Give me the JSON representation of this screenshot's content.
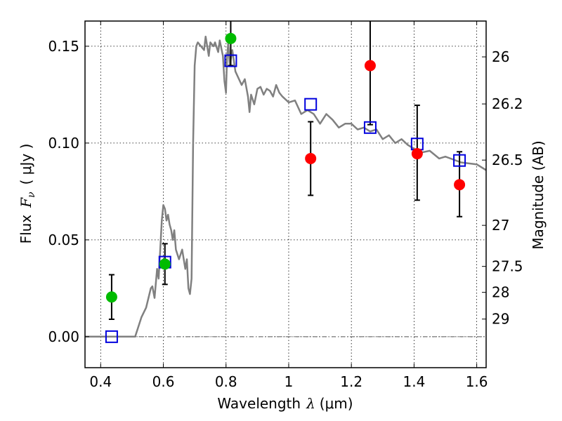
{
  "chart_data": {
    "type": "scatter",
    "xlabel": "Wavelength",
    "xlabel_symbol": "λ",
    "xlabel_unit": "(μm)",
    "ylabel": "Flux",
    "ylabel_symbol": "F",
    "ylabel_subscript": "ν",
    "ylabel_unit": "( μJy )",
    "y2label": "Magnitude (AB)",
    "xlim": [
      0.35,
      1.63
    ],
    "ylim": [
      -0.016,
      0.163
    ],
    "x_ticks": [
      0.4,
      0.6,
      0.8,
      1.0,
      1.2,
      1.4,
      1.6
    ],
    "x_tick_labels": [
      "0.4",
      "0.6",
      "0.8",
      "1",
      "1.2",
      "1.4",
      "1.6"
    ],
    "y_ticks": [
      0.0,
      0.05,
      0.1,
      0.15
    ],
    "y_tick_labels": [
      "0.00",
      "0.05",
      "0.10",
      "0.15"
    ],
    "mag_ticks": [
      {
        "label": "26",
        "flux": 0.1445
      },
      {
        "label": "26.2",
        "flux": 0.1202
      },
      {
        "label": "26.5",
        "flux": 0.0912
      },
      {
        "label": "27",
        "flux": 0.0575
      },
      {
        "label": "27.5",
        "flux": 0.0363
      },
      {
        "label": "28",
        "flux": 0.0229
      },
      {
        "label": "29",
        "flux": 0.0091
      }
    ],
    "grid": true,
    "series": [
      {
        "name": "model-sed",
        "kind": "line",
        "color": "#808080",
        "x": [
          0.35,
          0.51,
          0.53,
          0.545,
          0.56,
          0.565,
          0.572,
          0.58,
          0.585,
          0.59,
          0.595,
          0.6,
          0.605,
          0.61,
          0.615,
          0.62,
          0.625,
          0.63,
          0.635,
          0.64,
          0.65,
          0.66,
          0.67,
          0.675,
          0.68,
          0.685,
          0.69,
          0.695,
          0.7,
          0.705,
          0.71,
          0.72,
          0.73,
          0.735,
          0.745,
          0.75,
          0.76,
          0.765,
          0.775,
          0.78,
          0.79,
          0.795,
          0.8,
          0.803,
          0.807,
          0.812,
          0.82,
          0.83,
          0.85,
          0.86,
          0.87,
          0.875,
          0.88,
          0.89,
          0.9,
          0.91,
          0.92,
          0.93,
          0.94,
          0.95,
          0.96,
          0.97,
          0.98,
          1.0,
          1.02,
          1.04,
          1.06,
          1.08,
          1.1,
          1.12,
          1.14,
          1.16,
          1.18,
          1.2,
          1.22,
          1.24,
          1.26,
          1.28,
          1.3,
          1.32,
          1.34,
          1.36,
          1.38,
          1.4,
          1.42,
          1.45,
          1.48,
          1.5,
          1.55,
          1.6,
          1.63
        ],
        "y": [
          0.0,
          0.0,
          0.01,
          0.015,
          0.025,
          0.026,
          0.02,
          0.035,
          0.03,
          0.045,
          0.06,
          0.068,
          0.066,
          0.06,
          0.063,
          0.058,
          0.055,
          0.05,
          0.055,
          0.045,
          0.04,
          0.045,
          0.035,
          0.04,
          0.025,
          0.022,
          0.03,
          0.1,
          0.14,
          0.15,
          0.152,
          0.15,
          0.148,
          0.155,
          0.145,
          0.152,
          0.15,
          0.152,
          0.147,
          0.153,
          0.145,
          0.132,
          0.126,
          0.143,
          0.152,
          0.14,
          0.148,
          0.137,
          0.13,
          0.133,
          0.124,
          0.116,
          0.125,
          0.12,
          0.128,
          0.129,
          0.125,
          0.128,
          0.127,
          0.124,
          0.13,
          0.126,
          0.124,
          0.121,
          0.122,
          0.115,
          0.117,
          0.115,
          0.11,
          0.115,
          0.112,
          0.108,
          0.11,
          0.11,
          0.107,
          0.108,
          0.106,
          0.107,
          0.102,
          0.104,
          0.1,
          0.102,
          0.099,
          0.097,
          0.095,
          0.096,
          0.092,
          0.093,
          0.09,
          0.089,
          0.086
        ]
      },
      {
        "name": "observed-green",
        "kind": "points",
        "color": "#00bb00",
        "points": [
          {
            "x": 0.435,
            "y": 0.0205,
            "err_low": 0.009,
            "err_high": 0.032
          },
          {
            "x": 0.605,
            "y": 0.0375,
            "err_low": 0.027,
            "err_high": 0.048
          },
          {
            "x": 0.815,
            "y": 0.154,
            "err_low": 0.14,
            "err_high": 0.163
          }
        ]
      },
      {
        "name": "observed-red",
        "kind": "points",
        "color": "#ff0000",
        "points": [
          {
            "x": 1.07,
            "y": 0.092,
            "err_low": 0.073,
            "err_high": 0.111
          },
          {
            "x": 1.26,
            "y": 0.14,
            "err_low": 0.1095,
            "err_high": 0.163
          },
          {
            "x": 1.41,
            "y": 0.0945,
            "err_low": 0.0705,
            "err_high": 0.1195
          },
          {
            "x": 1.545,
            "y": 0.0785,
            "err_low": 0.062,
            "err_high": 0.0955
          }
        ]
      },
      {
        "name": "model-photometry",
        "kind": "squares",
        "color": "#0000dd",
        "points": [
          {
            "x": 0.435,
            "y": 0.0
          },
          {
            "x": 0.605,
            "y": 0.0385
          },
          {
            "x": 0.815,
            "y": 0.1425
          },
          {
            "x": 1.07,
            "y": 0.12
          },
          {
            "x": 1.26,
            "y": 0.108
          },
          {
            "x": 1.41,
            "y": 0.0995
          },
          {
            "x": 1.545,
            "y": 0.091
          }
        ]
      }
    ]
  }
}
